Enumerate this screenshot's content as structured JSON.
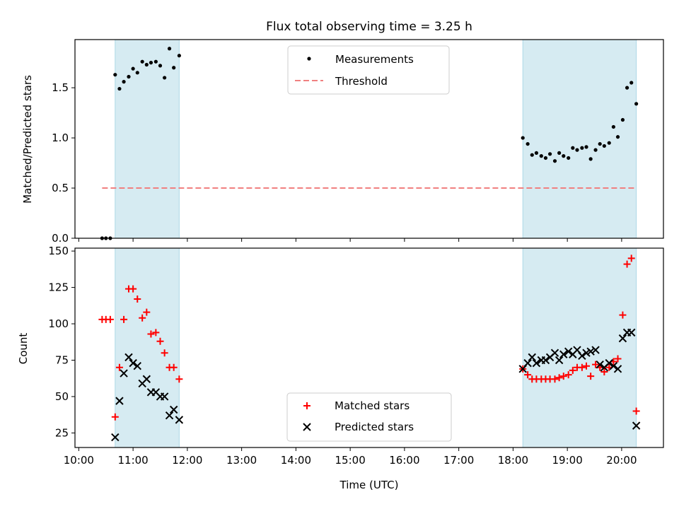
{
  "chart_data": [
    {
      "type": "scatter",
      "title": "Flux total observing time = 3.25 h",
      "xlabel": "",
      "ylabel": "Matched/Predicted stars",
      "xlim": [
        9.93,
        20.77
      ],
      "ylim": [
        0,
        1.98
      ],
      "yticks": [
        0.0,
        0.5,
        1.0,
        1.5
      ],
      "ytick_labels": [
        "0.0",
        "0.5",
        "1.0",
        "1.5"
      ],
      "xticks": [
        10,
        11,
        12,
        13,
        14,
        15,
        16,
        17,
        18,
        19,
        20
      ],
      "shaded_spans": [
        [
          10.67,
          11.85
        ],
        [
          18.18,
          20.27
        ]
      ],
      "legend": {
        "position": "top-center",
        "entries": [
          "Measurements",
          "Threshold"
        ]
      },
      "threshold": {
        "name": "Threshold",
        "value": 0.5,
        "x": [
          10.43,
          20.27
        ],
        "color": "#f08080"
      },
      "series": [
        {
          "name": "Measurements",
          "marker": "dot",
          "color": "#000000",
          "x": [
            10.43,
            10.5,
            10.58,
            10.67,
            10.75,
            10.83,
            10.92,
            11.0,
            11.08,
            11.17,
            11.25,
            11.33,
            11.42,
            11.5,
            11.58,
            11.67,
            11.75,
            11.85,
            18.18,
            18.27,
            18.35,
            18.43,
            18.52,
            18.6,
            18.68,
            18.77,
            18.85,
            18.93,
            19.02,
            19.1,
            19.18,
            19.27,
            19.35,
            19.43,
            19.52,
            19.6,
            19.68,
            19.77,
            19.85,
            19.93,
            20.02,
            20.1,
            20.18,
            20.27
          ],
          "y": [
            0,
            0,
            0,
            1.63,
            1.49,
            1.56,
            1.61,
            1.69,
            1.65,
            1.76,
            1.73,
            1.75,
            1.76,
            1.72,
            1.6,
            1.89,
            1.7,
            1.82,
            1.0,
            0.94,
            0.83,
            0.85,
            0.82,
            0.8,
            0.84,
            0.77,
            0.85,
            0.82,
            0.8,
            0.9,
            0.88,
            0.9,
            0.91,
            0.79,
            0.88,
            0.94,
            0.92,
            0.95,
            1.11,
            1.01,
            1.18,
            1.5,
            1.55,
            1.34
          ]
        }
      ]
    },
    {
      "type": "scatter",
      "title": "",
      "xlabel": "Time (UTC)",
      "ylabel": "Count",
      "xlim": [
        9.93,
        20.77
      ],
      "ylim": [
        15,
        152
      ],
      "yticks": [
        25,
        50,
        75,
        100,
        125,
        150
      ],
      "ytick_labels": [
        "25",
        "50",
        "75",
        "100",
        "125",
        "150"
      ],
      "xticks": [
        10,
        11,
        12,
        13,
        14,
        15,
        16,
        17,
        18,
        19,
        20
      ],
      "xtick_labels": [
        "10:00",
        "11:00",
        "12:00",
        "13:00",
        "14:00",
        "15:00",
        "16:00",
        "17:00",
        "18:00",
        "19:00",
        "20:00"
      ],
      "shaded_spans": [
        [
          10.67,
          11.85
        ],
        [
          18.18,
          20.27
        ]
      ],
      "legend": {
        "position": "bottom-center",
        "entries": [
          "Matched stars",
          "Predicted stars"
        ]
      },
      "series": [
        {
          "name": "Matched stars",
          "marker": "plus",
          "color": "#ff0000",
          "x": [
            10.43,
            10.5,
            10.58,
            10.67,
            10.75,
            10.83,
            10.92,
            11.0,
            11.08,
            11.17,
            11.25,
            11.33,
            11.42,
            11.5,
            11.58,
            11.67,
            11.75,
            11.85,
            18.18,
            18.27,
            18.35,
            18.43,
            18.52,
            18.6,
            18.68,
            18.77,
            18.85,
            18.93,
            19.02,
            19.1,
            19.18,
            19.27,
            19.35,
            19.43,
            19.52,
            19.6,
            19.68,
            19.77,
            19.85,
            19.93,
            20.02,
            20.1,
            20.18,
            20.27
          ],
          "y": [
            103,
            103,
            103,
            36,
            70,
            103,
            124,
            124,
            117,
            104,
            108,
            93,
            94,
            88,
            80,
            70,
            70,
            62,
            69,
            65,
            62,
            62,
            62,
            62,
            62,
            62,
            63,
            64,
            65,
            68,
            70,
            70,
            71,
            64,
            72,
            70,
            67,
            70,
            74,
            76,
            106,
            141,
            145,
            40
          ]
        },
        {
          "name": "Predicted stars",
          "marker": "x",
          "color": "#000000",
          "x": [
            10.67,
            10.75,
            10.83,
            10.92,
            11.0,
            11.08,
            11.17,
            11.25,
            11.33,
            11.42,
            11.5,
            11.58,
            11.67,
            11.75,
            11.85,
            18.18,
            18.27,
            18.35,
            18.43,
            18.52,
            18.6,
            18.68,
            18.77,
            18.85,
            18.93,
            19.02,
            19.1,
            19.18,
            19.27,
            19.35,
            19.43,
            19.52,
            19.6,
            19.68,
            19.77,
            19.85,
            19.93,
            20.02,
            20.1,
            20.18,
            20.27
          ],
          "y": [
            22,
            47,
            66,
            77,
            73,
            71,
            59,
            62,
            53,
            53,
            50,
            50,
            37,
            41,
            34,
            69,
            73,
            77,
            73,
            75,
            75,
            77,
            80,
            75,
            79,
            81,
            79,
            82,
            78,
            80,
            81,
            82,
            72,
            70,
            73,
            71,
            69,
            90,
            94,
            94,
            30
          ]
        }
      ]
    }
  ]
}
